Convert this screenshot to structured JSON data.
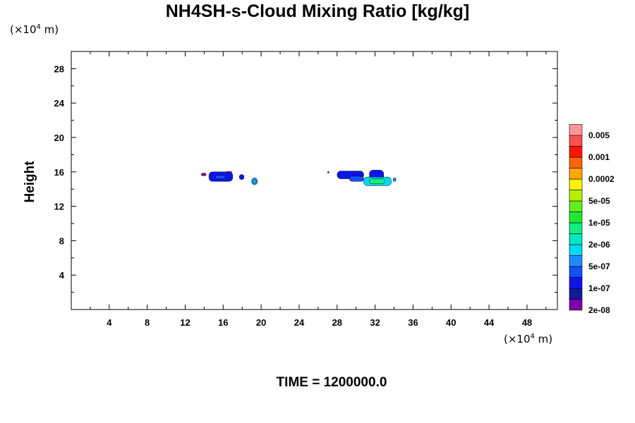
{
  "chart_data": {
    "type": "heatmap",
    "title": "NH4SH-s-Cloud Mixing Ratio [kg/kg]",
    "ylabel": "Height",
    "x_unit_prefix": "(×10",
    "x_unit_exp": "4",
    "x_unit_suffix": " m)",
    "y_unit_prefix": "(×10",
    "y_unit_exp": "4",
    "y_unit_suffix": " m)",
    "footer": "TIME = 1200000.0",
    "xlim": [
      0,
      51.2
    ],
    "ylim": [
      0,
      30
    ],
    "x_ticks": [
      4,
      8,
      12,
      16,
      20,
      24,
      28,
      32,
      36,
      40,
      44,
      48
    ],
    "y_ticks": [
      4,
      8,
      12,
      16,
      20,
      24,
      28
    ],
    "colorbar": {
      "labels": [
        "0.005",
        "0.001",
        "0.0002",
        "5e-05",
        "1e-05",
        "2e-06",
        "5e-07",
        "1e-07",
        "2e-08"
      ],
      "colors": [
        "#7f00a8",
        "#0f1aa0",
        "#0d16e8",
        "#1450f5",
        "#1e8cff",
        "#00d8f8",
        "#00e8c0",
        "#10f080",
        "#20e830",
        "#60ee20",
        "#b4f000",
        "#fff000",
        "#ffa800",
        "#ff6400",
        "#ff1400",
        "#ff5050",
        "#ff9696"
      ]
    },
    "regions": [
      {
        "level": 0,
        "x": 13.7,
        "y": 15.55,
        "w": 0.5,
        "h": 0.3
      },
      {
        "level": 2,
        "x": 14.5,
        "y": 14.9,
        "w": 2.5,
        "h": 1.1
      },
      {
        "level": 3,
        "x": 15.2,
        "y": 15.2,
        "w": 1.0,
        "h": 0.4
      },
      {
        "level": 0,
        "x": 16.3,
        "y": 15.85,
        "w": 0.6,
        "h": 0.2
      },
      {
        "level": 2,
        "x": 17.7,
        "y": 15.1,
        "w": 0.5,
        "h": 0.6
      },
      {
        "level": 4,
        "x": 19.0,
        "y": 14.5,
        "w": 0.6,
        "h": 0.8
      },
      {
        "level": 6,
        "x": 19.15,
        "y": 14.7,
        "w": 0.3,
        "h": 0.35
      },
      {
        "level": 0,
        "x": 27.0,
        "y": 15.85,
        "w": 0.15,
        "h": 0.2
      },
      {
        "level": 2,
        "x": 28.0,
        "y": 15.2,
        "w": 2.8,
        "h": 0.9
      },
      {
        "level": 3,
        "x": 29.3,
        "y": 14.9,
        "w": 1.5,
        "h": 0.6
      },
      {
        "level": 2,
        "x": 31.4,
        "y": 14.6,
        "w": 1.5,
        "h": 1.6
      },
      {
        "level": 5,
        "x": 30.8,
        "y": 14.4,
        "w": 2.9,
        "h": 1.0
      },
      {
        "level": 7,
        "x": 31.4,
        "y": 14.6,
        "w": 1.6,
        "h": 0.6
      },
      {
        "level": 4,
        "x": 33.9,
        "y": 14.9,
        "w": 0.3,
        "h": 0.4
      }
    ]
  }
}
